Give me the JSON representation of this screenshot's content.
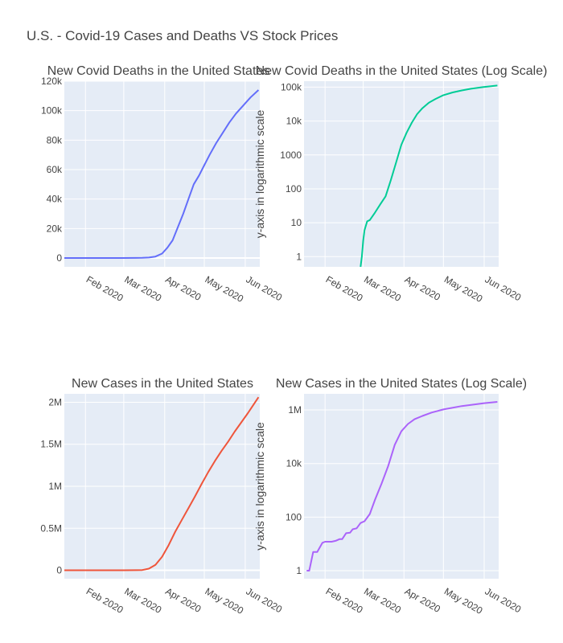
{
  "title": "U.S. - Covid-19 Cases and Deaths VS Stock Prices",
  "chart_data": [
    {
      "type": "line",
      "title": "New Covid Deaths in the United States",
      "ylabel": "",
      "color": "#636efa",
      "scale": "linear",
      "xlim": [
        "2020-01-16",
        "2020-06-12"
      ],
      "ylim": [
        -6000,
        120000
      ],
      "x_ticks": [
        "2020-02-01",
        "2020-03-01",
        "2020-04-01",
        "2020-05-01",
        "2020-06-01"
      ],
      "x_tick_labels": [
        "Feb 2020",
        "Mar 2020",
        "Apr 2020",
        "May 2020",
        "Jun 2020"
      ],
      "y_ticks": [
        0,
        20000,
        40000,
        60000,
        80000,
        100000,
        120000
      ],
      "y_tick_labels": [
        "0",
        "20k",
        "40k",
        "60k",
        "80k",
        "100k",
        "120k"
      ],
      "grid": true,
      "x": [
        "2020-01-16",
        "2020-02-01",
        "2020-02-29",
        "2020-03-10",
        "2020-03-15",
        "2020-03-20",
        "2020-03-25",
        "2020-03-30",
        "2020-04-03",
        "2020-04-07",
        "2020-04-11",
        "2020-04-15",
        "2020-04-19",
        "2020-04-23",
        "2020-04-27",
        "2020-05-01",
        "2020-05-05",
        "2020-05-10",
        "2020-05-15",
        "2020-05-20",
        "2020-05-25",
        "2020-05-31",
        "2020-06-05",
        "2020-06-11"
      ],
      "y": [
        0,
        0,
        2,
        30,
        100,
        300,
        1000,
        3000,
        7000,
        12000,
        21000,
        30000,
        40000,
        50000,
        56000,
        63000,
        70000,
        78000,
        85000,
        92000,
        98000,
        104000,
        109000,
        114000
      ]
    },
    {
      "type": "line",
      "title": "New Covid Deaths in the United States (Log Scale)",
      "ylabel": "y-axis in logarithmic scale",
      "color": "#00cc96",
      "scale": "log",
      "xlim": [
        "2020-01-16",
        "2020-06-12"
      ],
      "ylim": [
        0.5,
        150000
      ],
      "x_ticks": [
        "2020-02-01",
        "2020-03-01",
        "2020-04-01",
        "2020-05-01",
        "2020-06-01"
      ],
      "x_tick_labels": [
        "Feb 2020",
        "Mar 2020",
        "Apr 2020",
        "May 2020",
        "Jun 2020"
      ],
      "y_ticks": [
        1,
        10,
        100,
        1000,
        10000,
        100000
      ],
      "y_tick_labels": [
        "1",
        "10",
        "100",
        "1000",
        "10k",
        "100k"
      ],
      "grid": true,
      "x": [
        "2020-02-28",
        "2020-02-29",
        "2020-03-01",
        "2020-03-02",
        "2020-03-04",
        "2020-03-06",
        "2020-03-10",
        "2020-03-14",
        "2020-03-18",
        "2020-03-22",
        "2020-03-26",
        "2020-03-30",
        "2020-04-03",
        "2020-04-07",
        "2020-04-11",
        "2020-04-15",
        "2020-04-20",
        "2020-04-25",
        "2020-05-01",
        "2020-05-08",
        "2020-05-15",
        "2020-05-22",
        "2020-05-31",
        "2020-06-11"
      ],
      "y": [
        0.5,
        1,
        3,
        6,
        11,
        12,
        20,
        35,
        60,
        180,
        600,
        2000,
        4500,
        9000,
        16000,
        24000,
        35000,
        45000,
        58000,
        70000,
        80000,
        90000,
        100000,
        112000
      ]
    },
    {
      "type": "line",
      "title": "New Cases in the United States",
      "ylabel": "",
      "color": "#ef553b",
      "scale": "linear",
      "xlim": [
        "2020-01-16",
        "2020-06-12"
      ],
      "ylim": [
        -100000,
        2100000
      ],
      "x_ticks": [
        "2020-02-01",
        "2020-03-01",
        "2020-04-01",
        "2020-05-01",
        "2020-06-01"
      ],
      "x_tick_labels": [
        "Feb 2020",
        "Mar 2020",
        "Apr 2020",
        "May 2020",
        "Jun 2020"
      ],
      "y_ticks": [
        0,
        500000,
        1000000,
        1500000,
        2000000
      ],
      "y_tick_labels": [
        "0",
        "0.5M",
        "1M",
        "1.5M",
        "2M"
      ],
      "grid": true,
      "x": [
        "2020-01-16",
        "2020-02-01",
        "2020-03-01",
        "2020-03-10",
        "2020-03-15",
        "2020-03-20",
        "2020-03-25",
        "2020-03-30",
        "2020-04-04",
        "2020-04-09",
        "2020-04-14",
        "2020-04-19",
        "2020-04-24",
        "2020-04-29",
        "2020-05-04",
        "2020-05-09",
        "2020-05-14",
        "2020-05-19",
        "2020-05-24",
        "2020-05-29",
        "2020-06-03",
        "2020-06-11"
      ],
      "y": [
        1,
        8,
        75,
        1000,
        3500,
        20000,
        65000,
        160000,
        300000,
        460000,
        600000,
        740000,
        880000,
        1030000,
        1170000,
        1300000,
        1420000,
        1530000,
        1650000,
        1760000,
        1870000,
        2060000
      ]
    },
    {
      "type": "line",
      "title": "New Cases in the United States (Log Scale)",
      "ylabel": "y-axis in logarithmic scale",
      "color": "#ab63fa",
      "scale": "log",
      "xlim": [
        "2020-01-16",
        "2020-06-12"
      ],
      "ylim": [
        0.5,
        4000000
      ],
      "x_ticks": [
        "2020-02-01",
        "2020-03-01",
        "2020-04-01",
        "2020-05-01",
        "2020-06-01"
      ],
      "x_tick_labels": [
        "Feb 2020",
        "Mar 2020",
        "Apr 2020",
        "May 2020",
        "Jun 2020"
      ],
      "y_ticks": [
        1,
        100,
        10000,
        1000000
      ],
      "y_tick_labels": [
        "1",
        "100",
        "10k",
        "1M"
      ],
      "grid": true,
      "x": [
        "2020-01-18",
        "2020-01-20",
        "2020-01-23",
        "2020-01-24",
        "2020-01-26",
        "2020-01-30",
        "2020-02-01",
        "2020-02-06",
        "2020-02-09",
        "2020-02-12",
        "2020-02-14",
        "2020-02-17",
        "2020-02-20",
        "2020-02-22",
        "2020-02-25",
        "2020-02-28",
        "2020-03-02",
        "2020-03-06",
        "2020-03-10",
        "2020-03-15",
        "2020-03-20",
        "2020-03-25",
        "2020-03-30",
        "2020-04-04",
        "2020-04-09",
        "2020-04-15",
        "2020-04-22",
        "2020-05-01",
        "2020-05-15",
        "2020-06-01",
        "2020-06-11"
      ],
      "y": [
        1,
        1,
        5,
        5,
        5,
        11,
        12,
        12,
        13,
        15,
        15,
        25,
        26,
        35,
        38,
        60,
        70,
        130,
        450,
        1800,
        8000,
        50000,
        160000,
        300000,
        450000,
        600000,
        800000,
        1050000,
        1400000,
        1800000,
        2000000
      ]
    }
  ]
}
